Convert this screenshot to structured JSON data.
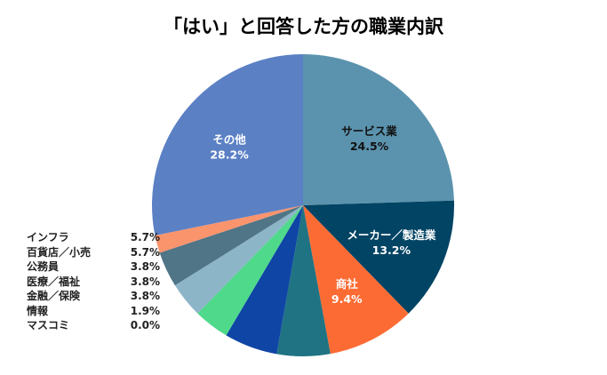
{
  "chart_data": {
    "type": "pie",
    "title": "「はい」と回答した方の職業内訳",
    "slices": [
      {
        "label": "サービス業",
        "value": 24.5,
        "color": "#5b93ae",
        "label_color": "#111111",
        "show_label": true
      },
      {
        "label": "メーカー／製造業",
        "value": 13.2,
        "color": "#024464",
        "label_color": "#ffffff",
        "show_label": true
      },
      {
        "label": "商社",
        "value": 9.4,
        "color": "#fd6b34",
        "label_color": "#ffffff",
        "show_label": true
      },
      {
        "label": "",
        "value": 5.7,
        "color": "#1f7383",
        "show_label": false
      },
      {
        "label": "",
        "value": 5.7,
        "color": "#0f45a5",
        "show_label": false
      },
      {
        "label": "",
        "value": 3.8,
        "color": "#4fd98b",
        "show_label": false
      },
      {
        "label": "",
        "value": 3.8,
        "color": "#8db5c8",
        "show_label": false
      },
      {
        "label": "",
        "value": 3.8,
        "color": "#4f7587",
        "show_label": false
      },
      {
        "label": "",
        "value": 1.9,
        "color": "#fa946d",
        "show_label": false
      },
      {
        "label": "その他",
        "value": 28.2,
        "color": "#5b80c4",
        "label_color": "#ffffff",
        "show_label": true
      }
    ],
    "legend": [
      {
        "label": "インフラ",
        "value": "5.7%"
      },
      {
        "label": "百貨店／小売",
        "value": "5.7%"
      },
      {
        "label": "公務員",
        "value": "3.8%"
      },
      {
        "label": "医療／福祉",
        "value": "3.8%"
      },
      {
        "label": "金融／保険",
        "value": "3.8%"
      },
      {
        "label": "情報",
        "value": "1.9%"
      },
      {
        "label": "マスコミ",
        "value": "0.0%"
      }
    ],
    "legend_position": "left"
  }
}
